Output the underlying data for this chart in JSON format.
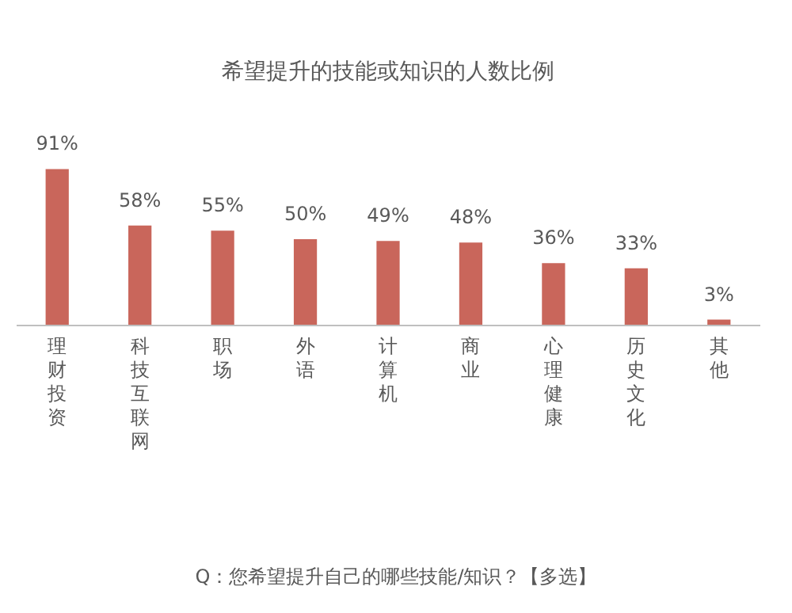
{
  "chart_data": {
    "type": "bar",
    "title": "希望提升的技能或知识的人数比例",
    "categories": [
      "理财投资",
      "科技互联网",
      "职场",
      "外语",
      "计算机",
      "商业",
      "心理健康",
      "历史文化",
      "其他"
    ],
    "values": [
      91,
      58,
      55,
      50,
      49,
      48,
      36,
      33,
      3
    ],
    "value_labels": [
      "91%",
      "58%",
      "55%",
      "50%",
      "49%",
      "48%",
      "36%",
      "33%",
      "3%"
    ],
    "color": "#c9665b",
    "grid": false,
    "annotations": [
      "Q：您希望提升自己的哪些技能/知识？【多选】"
    ]
  }
}
